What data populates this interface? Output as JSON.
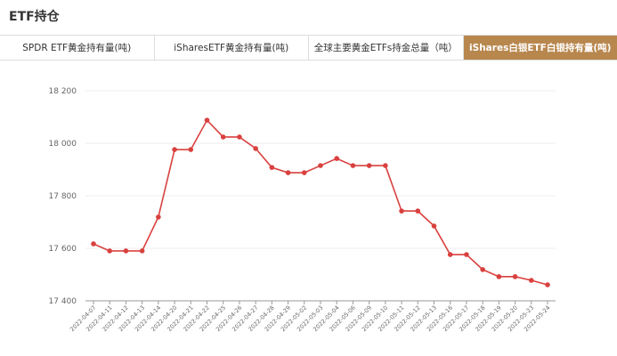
{
  "header": {
    "title": "ETF持仓"
  },
  "tabs": [
    "SPDR ETF黄金持有量(吨)",
    "iSharesETF黄金持有量(吨)",
    "全球主要黄金ETFs持金总量（吨）",
    "iShares白银ETF白银持有量(吨)"
  ],
  "chart_data": {
    "type": "line",
    "categories": [
      "2022-04-07",
      "2022-04-11",
      "2022-04-12",
      "2022-04-13",
      "2022-04-14",
      "2022-04-20",
      "2022-04-21",
      "2022-04-22",
      "2022-04-25",
      "2022-04-26",
      "2022-04-27",
      "2022-04-28",
      "2022-04-29",
      "2022-05-02",
      "2022-05-03",
      "2022-05-04",
      "2022-05-06",
      "2022-05-09",
      "2022-05-10",
      "2022-05-11",
      "2022-05-12",
      "2022-05-13",
      "2022-05-16",
      "2022-05-17",
      "2022-05-18",
      "2022-05-19",
      "2022-05-20",
      "2022-05-23",
      "2022-05-24"
    ],
    "values": [
      17617,
      17590,
      17590,
      17590,
      17719,
      17976,
      17976,
      18088,
      18024,
      18024,
      17980,
      17908,
      17888,
      17888,
      17915,
      17942,
      17915,
      17915,
      17915,
      17742,
      17742,
      17685,
      17576,
      17576,
      17519,
      17492,
      17492,
      17478,
      17461
    ],
    "color": "#d9413f",
    "ylim": [
      17400,
      18200
    ],
    "yticks": [
      {
        "value": 17400,
        "label": "17 400"
      },
      {
        "value": 17600,
        "label": "17 600"
      },
      {
        "value": 17800,
        "label": "17 800"
      },
      {
        "value": 18000,
        "label": "18 000"
      },
      {
        "value": 18200,
        "label": "18 200"
      }
    ],
    "grid": true
  }
}
